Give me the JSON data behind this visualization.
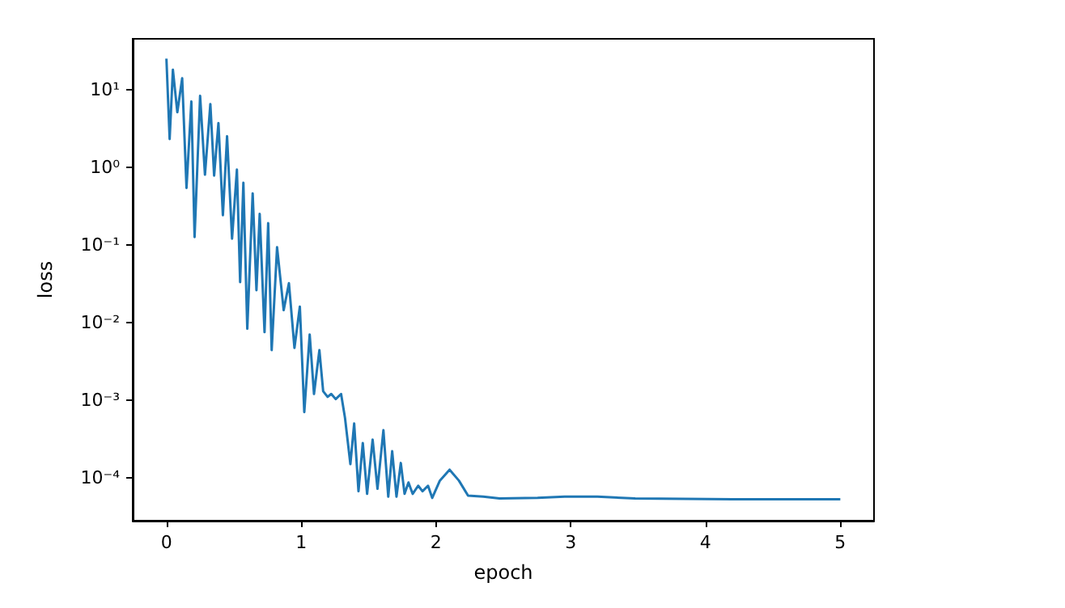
{
  "chart_data": {
    "type": "line",
    "xlabel": "epoch",
    "ylabel": "loss",
    "log": "y",
    "grid": false,
    "xlim": [
      -0.25,
      5.25
    ],
    "xticks": [
      0,
      1,
      2,
      3,
      4,
      5
    ],
    "ylim": [
      2.8e-05,
      45
    ],
    "yticks": [
      {
        "value": 0.0001,
        "label": "10⁻⁴"
      },
      {
        "value": 0.001,
        "label": "10⁻³"
      },
      {
        "value": 0.01,
        "label": "10⁻²"
      },
      {
        "value": 0.1,
        "label": "10⁻¹"
      },
      {
        "value": 1,
        "label": "10⁰"
      },
      {
        "value": 10,
        "label": "10¹"
      }
    ],
    "series": [
      {
        "color": "#1f77b4",
        "x": [
          0,
          0.024,
          0.048,
          0.081,
          0.117,
          0.149,
          0.185,
          0.209,
          0.25,
          0.286,
          0.326,
          0.354,
          0.386,
          0.419,
          0.45,
          0.487,
          0.523,
          0.547,
          0.571,
          0.6,
          0.64,
          0.668,
          0.692,
          0.728,
          0.755,
          0.781,
          0.821,
          0.87,
          0.909,
          0.95,
          0.99,
          1.023,
          1.063,
          1.095,
          1.135,
          1.163,
          1.196,
          1.223,
          1.256,
          1.296,
          1.325,
          1.365,
          1.393,
          1.425,
          1.457,
          1.489,
          1.53,
          1.566,
          1.61,
          1.646,
          1.675,
          1.707,
          1.739,
          1.767,
          1.796,
          1.827,
          1.868,
          1.9,
          1.941,
          1.972,
          2.029,
          2.101,
          2.17,
          2.238,
          2.351,
          2.472,
          2.754,
          2.955,
          3.197,
          3.478,
          4.2,
          5.0
        ],
        "values": [
          25,
          2.3,
          18,
          5.1,
          14,
          0.54,
          7,
          0.126,
          8.3,
          0.8,
          6.5,
          0.78,
          3.7,
          0.24,
          2.5,
          0.12,
          0.93,
          0.033,
          0.63,
          0.0083,
          0.46,
          0.026,
          0.25,
          0.0075,
          0.19,
          0.0044,
          0.093,
          0.0144,
          0.032,
          0.0047,
          0.016,
          0.0007,
          0.007,
          0.0012,
          0.0044,
          0.0013,
          0.0011,
          0.0012,
          0.00103,
          0.0012,
          0.00059,
          0.00015,
          0.0005,
          6.7e-05,
          0.00028,
          6.2e-05,
          0.00031,
          7.2e-05,
          0.00041,
          5.7e-05,
          0.00022,
          5.7e-05,
          0.000155,
          6.2e-05,
          8.7e-05,
          6.2e-05,
          7.9e-05,
          6.7e-05,
          7.9e-05,
          5.5e-05,
          9.2e-05,
          0.000127,
          9.2e-05,
          5.9e-05,
          5.7e-05,
          5.4e-05,
          5.5e-05,
          5.7e-05,
          5.7e-05,
          5.4e-05,
          5.3e-05,
          5.3e-05
        ]
      }
    ]
  }
}
